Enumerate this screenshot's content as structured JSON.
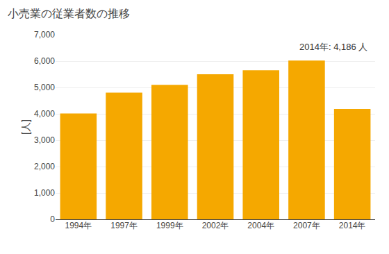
{
  "chart_data": {
    "type": "bar",
    "title": "小売業の従業者数の推移",
    "ylabel": "[人]",
    "annotation": "2014年: 4,186 人",
    "categories": [
      "1994年",
      "1997年",
      "1999年",
      "2002年",
      "2004年",
      "2007年",
      "2014年"
    ],
    "values": [
      4010,
      4800,
      5100,
      5500,
      5650,
      6020,
      4186
    ],
    "color": "#F5A800",
    "ylim": [
      0,
      7000
    ],
    "yticks": [
      0,
      {
        "value": 1000,
        "label": "1,000"
      },
      {
        "value": 2000,
        "label": "2,000"
      },
      {
        "value": 3000,
        "label": "3,000"
      },
      {
        "value": 4000,
        "label": "4,000"
      },
      {
        "value": 5000,
        "label": "5,000"
      },
      {
        "value": 6000,
        "label": "6,000"
      },
      {
        "value": 7000,
        "label": "7,000"
      }
    ],
    "grid": true
  }
}
